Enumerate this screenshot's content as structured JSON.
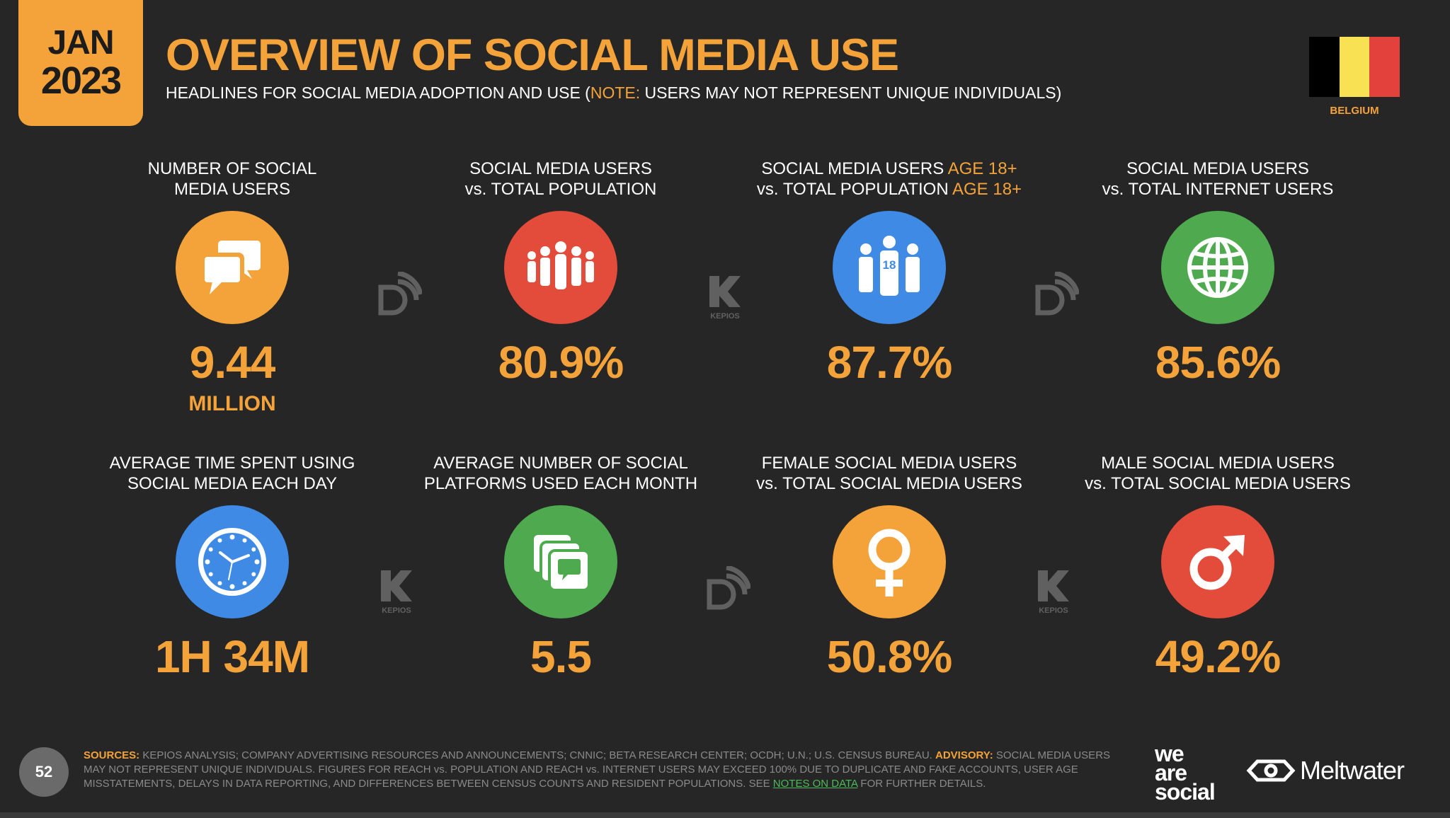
{
  "header": {
    "month": "JAN",
    "year": "2023",
    "title": "OVERVIEW OF SOCIAL MEDIA USE",
    "subtitle_pre": "HEADLINES FOR SOCIAL MEDIA ADOPTION AND USE (",
    "subtitle_note": "NOTE:",
    "subtitle_post": " USERS MAY NOT REPRESENT UNIQUE INDIVIDUALS)",
    "country": "BELGIUM",
    "flag_colors": [
      "#000000",
      "#f8e152",
      "#e2413c"
    ]
  },
  "stats": [
    {
      "label_1": "NUMBER OF SOCIAL",
      "label_2": "MEDIA USERS",
      "value": "9.44",
      "unit": "MILLION",
      "icon": "speech-bubbles-icon",
      "color": "#f4a23a"
    },
    {
      "label_1": "SOCIAL MEDIA USERS",
      "label_2": "vs. TOTAL POPULATION",
      "value": "80.9%",
      "icon": "crowd-icon",
      "color": "#e34b3b"
    },
    {
      "label_1a": "SOCIAL MEDIA USERS ",
      "label_1b": "AGE 18+",
      "label_2a": "vs. TOTAL POPULATION ",
      "label_2b": "AGE 18+",
      "value": "87.7%",
      "icon": "adults-18-icon",
      "icon_text": "18",
      "color": "#3f8ae4"
    },
    {
      "label_1": "SOCIAL MEDIA USERS",
      "label_2": "vs. TOTAL INTERNET USERS",
      "value": "85.6%",
      "icon": "globe-icon",
      "color": "#4faa4f"
    },
    {
      "label_1": "AVERAGE TIME SPENT USING",
      "label_2": "SOCIAL MEDIA EACH DAY",
      "value": "1H 34M",
      "icon": "clock-icon",
      "color": "#3f8ae4"
    },
    {
      "label_1": "AVERAGE NUMBER OF SOCIAL",
      "label_2": "PLATFORMS USED EACH MONTH",
      "value": "5.5",
      "icon": "platforms-icon",
      "color": "#4faa4f"
    },
    {
      "label_1": "FEMALE SOCIAL MEDIA USERS",
      "label_2": "vs. TOTAL SOCIAL MEDIA USERS",
      "value": "50.8%",
      "icon": "female-icon",
      "color": "#f4a23a"
    },
    {
      "label_1": "MALE SOCIAL MEDIA USERS",
      "label_2": "vs. TOTAL SOCIAL MEDIA USERS",
      "value": "49.2%",
      "icon": "male-icon",
      "color": "#e34b3b"
    }
  ],
  "watermark": {
    "kepios": "KEPIOS"
  },
  "footer": {
    "page": "52",
    "sources_label": "SOURCES:",
    "sources_text": " KEPIOS ANALYSIS; COMPANY ADVERTISING RESOURCES AND ANNOUNCEMENTS; CNNIC; BETA RESEARCH CENTER; OCDH; U.N.; U.S. CENSUS BUREAU. ",
    "advisory_label": "ADVISORY:",
    "advisory_text": " SOCIAL MEDIA USERS MAY NOT REPRESENT UNIQUE INDIVIDUALS. FIGURES FOR REACH vs. POPULATION AND REACH vs. INTERNET USERS MAY EXCEED 100% DUE TO DUPLICATE AND FAKE ACCOUNTS, USER AGE MISSTATEMENTS, DELAYS IN DATA REPORTING, AND DIFFERENCES BETWEEN CENSUS COUNTS AND RESIDENT POPULATIONS. SEE ",
    "notes_link": "NOTES ON DATA",
    "tail": " FOR FURTHER DETAILS.",
    "brand_1": "we",
    "brand_2": "are",
    "brand_3": "social",
    "brand_meltwater": "Meltwater"
  }
}
